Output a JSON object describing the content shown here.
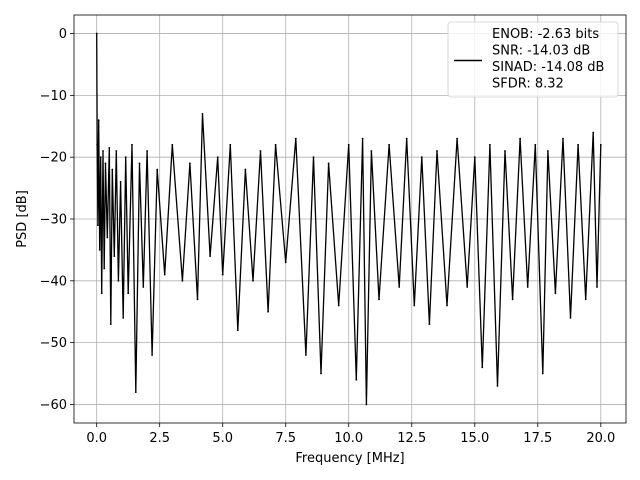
{
  "chart_data": {
    "type": "line",
    "title": "",
    "xlabel": "Frequency [MHz]",
    "ylabel": "PSD [dB]",
    "xlim": [
      -0.9,
      21.0
    ],
    "ylim": [
      -63.0,
      3.0
    ],
    "xticks": [
      0.0,
      2.5,
      5.0,
      7.5,
      10.0,
      12.5,
      15.0,
      17.5,
      20.0
    ],
    "xtick_labels": [
      "0.0",
      "2.5",
      "5.0",
      "7.5",
      "10.0",
      "12.5",
      "15.0",
      "17.5",
      "20.0"
    ],
    "yticks": [
      0,
      -10,
      -20,
      -30,
      -40,
      -50,
      -60
    ],
    "ytick_labels": [
      "0",
      "−10",
      "−20",
      "−30",
      "−40",
      "−50",
      "−60"
    ],
    "grid": true,
    "legend_position": "top-right",
    "legend_lines": [
      "ENOB: -2.63 bits",
      "SNR: -14.03 dB",
      "SINAD: -14.08 dB",
      "SFDR: 8.32"
    ],
    "series": [
      {
        "color": "#000000",
        "x": [
          0.0,
          0.02,
          0.05,
          0.08,
          0.12,
          0.16,
          0.2,
          0.25,
          0.3,
          0.35,
          0.42,
          0.5,
          0.56,
          0.62,
          0.7,
          0.78,
          0.86,
          0.95,
          1.05,
          1.15,
          1.25,
          1.4,
          1.55,
          1.7,
          1.85,
          2.0,
          2.2,
          2.4,
          2.7,
          3.0,
          3.4,
          3.7,
          4.0,
          4.2,
          4.5,
          4.8,
          5.0,
          5.3,
          5.6,
          5.9,
          6.2,
          6.5,
          6.8,
          7.1,
          7.5,
          7.9,
          8.3,
          8.6,
          8.9,
          9.2,
          9.6,
          10.0,
          10.3,
          10.55,
          10.7,
          10.9,
          11.2,
          11.6,
          12.0,
          12.3,
          12.6,
          12.9,
          13.2,
          13.5,
          13.9,
          14.3,
          14.7,
          15.0,
          15.3,
          15.6,
          15.9,
          16.2,
          16.5,
          16.8,
          17.1,
          17.4,
          17.7,
          17.9,
          18.2,
          18.5,
          18.8,
          19.1,
          19.4,
          19.7,
          19.85,
          20.0
        ],
        "y": [
          0.0,
          -18.0,
          -31.0,
          -14.0,
          -35.0,
          -20.0,
          -42.0,
          -19.0,
          -38.0,
          -21.0,
          -33.0,
          -18.5,
          -47.0,
          -22.0,
          -36.0,
          -19.0,
          -40.0,
          -24.0,
          -46.0,
          -20.0,
          -42.0,
          -18.0,
          -58.0,
          -21.0,
          -41.0,
          -19.0,
          -52.0,
          -22.0,
          -39.0,
          -18.0,
          -40.0,
          -21.0,
          -43.0,
          -13.0,
          -36.0,
          -20.0,
          -39.0,
          -18.0,
          -48.0,
          -22.0,
          -40.0,
          -19.0,
          -45.0,
          -18.0,
          -37.0,
          -17.0,
          -52.0,
          -20.0,
          -55.0,
          -21.0,
          -44.0,
          -18.0,
          -56.0,
          -17.0,
          -60.0,
          -19.0,
          -43.0,
          -18.0,
          -41.0,
          -17.0,
          -44.0,
          -20.0,
          -47.0,
          -19.0,
          -44.0,
          -17.0,
          -41.0,
          -20.0,
          -54.0,
          -18.0,
          -57.0,
          -19.0,
          -43.0,
          -17.0,
          -41.0,
          -18.0,
          -55.0,
          -19.0,
          -42.0,
          -17.0,
          -46.0,
          -18.0,
          -43.0,
          -16.0,
          -41.0,
          -18.0
        ]
      }
    ]
  }
}
